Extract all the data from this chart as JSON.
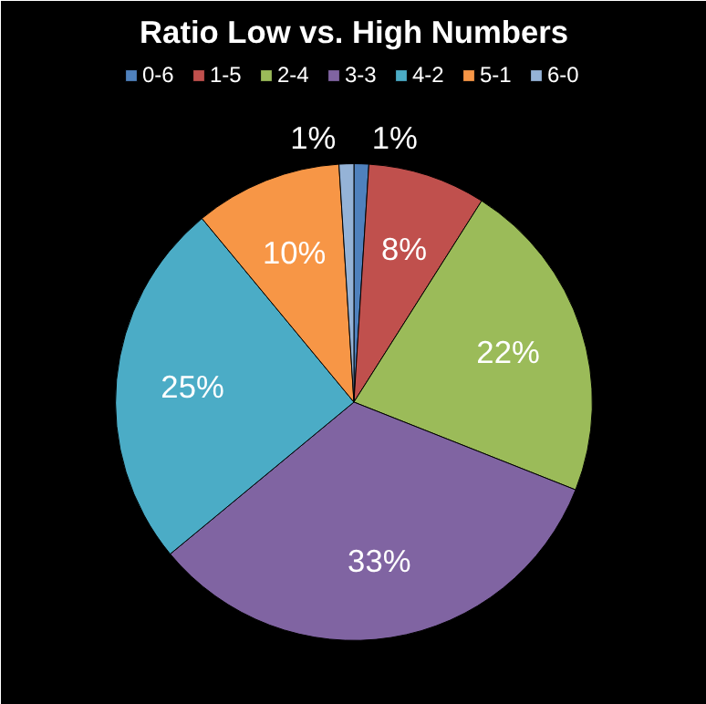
{
  "chart_data": {
    "type": "pie",
    "title": "Ratio Low vs. High Numbers",
    "categories": [
      "0-6",
      "1-5",
      "2-4",
      "3-3",
      "4-2",
      "5-1",
      "6-0"
    ],
    "values": [
      1,
      8,
      22,
      33,
      25,
      10,
      1
    ],
    "value_labels": [
      "1%",
      "8%",
      "22%",
      "33%",
      "25%",
      "10%",
      "1%"
    ],
    "colors": [
      "#4f81bd",
      "#c0504d",
      "#9bbb59",
      "#8064a2",
      "#4bacc6",
      "#f79646",
      "#95b3d7"
    ],
    "legend": "top"
  }
}
